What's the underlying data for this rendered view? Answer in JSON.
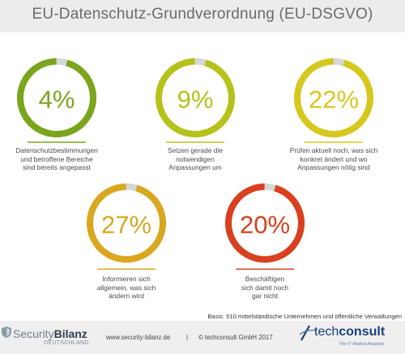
{
  "header": {
    "title": "EU-Datenschutz-Grundverordnung (EU-DSGVO)"
  },
  "chart_data": {
    "type": "donut",
    "items": [
      {
        "value": 4,
        "label": "4%",
        "color": "#7aa51c",
        "caption": [
          "Datenschutzbestimmungen",
          "und betroffene Bereiche",
          "sind bereits angepasst"
        ]
      },
      {
        "value": 9,
        "label": "9%",
        "color": "#b5c21a",
        "caption": [
          "Setzen gerade die",
          "notwendigen",
          "Anpassungen um"
        ]
      },
      {
        "value": 22,
        "label": "22%",
        "color": "#d6c81c",
        "caption": [
          "Prüfen aktuell noch, was sich",
          "konkret ändert und wo",
          "Anpassungen nötig sind"
        ]
      },
      {
        "value": 27,
        "label": "27%",
        "color": "#d9a81f",
        "caption": [
          "Informieren sich",
          "allgemein, was sich",
          "ändern wird"
        ]
      },
      {
        "value": 20,
        "label": "20%",
        "color": "#d9401e",
        "caption": [
          "Beschäftigen",
          "sich damit noch",
          "gar nicht"
        ]
      }
    ],
    "track_color": "#d6d6d6"
  },
  "basis": "Basis: 510 mittelständische Unternehmen und öffentliche Verwaltungen",
  "footer": {
    "brand_left_part1": "Security",
    "brand_left_part2": "Bilanz",
    "brand_left_sub": "DEUTSCHLAND",
    "url": "www.security-bilanz.de",
    "separator": "|",
    "copyright": "© techconsult GmbH 2017",
    "brand_right_part1": "tech",
    "brand_right_part2": "consult",
    "brand_right_sub": "The IT Market Analysts"
  }
}
